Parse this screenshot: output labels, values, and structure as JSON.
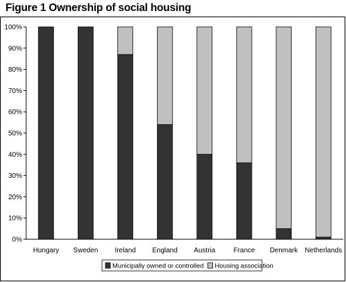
{
  "chart_data": {
    "type": "bar",
    "stacked": true,
    "percent_stacked": true,
    "title": "Figure 1 Ownership of social housing",
    "categories": [
      "Hungary",
      "Sweden",
      "Ireland",
      "England",
      "Austria",
      "France",
      "Denmark",
      "Netherlands"
    ],
    "series": [
      {
        "name": "Municipally owned or controlled",
        "color": "#333333",
        "values": [
          100,
          100,
          87,
          54,
          40,
          36,
          5,
          1
        ]
      },
      {
        "name": "Housing association",
        "color": "#c0c0c0",
        "values": [
          0,
          0,
          13,
          46,
          60,
          64,
          95,
          99
        ]
      }
    ],
    "ylim": [
      0,
      100
    ],
    "yticks": [
      "0%",
      "10%",
      "20%",
      "30%",
      "40%",
      "50%",
      "60%",
      "70%",
      "80%",
      "90%",
      "100%"
    ],
    "grid": false,
    "legend_position": "bottom"
  }
}
